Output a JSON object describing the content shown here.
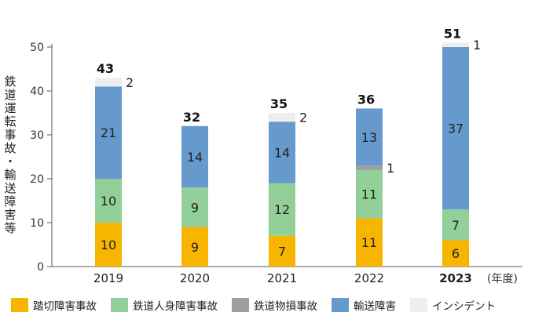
{
  "chart_data": {
    "type": "bar",
    "stacked": true,
    "ylabel": "鉄道運転事故・輸送障害等",
    "xunit": "(年度)",
    "ylim": [
      0,
      50
    ],
    "yticks": [
      0,
      10,
      20,
      30,
      40,
      50
    ],
    "categories": [
      "2019",
      "2020",
      "2021",
      "2022",
      "2023"
    ],
    "highlight_category": "2023",
    "series": [
      {
        "name": "踏切障害事故",
        "color": "#f7b500",
        "values": [
          10,
          9,
          7,
          11,
          6
        ]
      },
      {
        "name": "鉄道人身障害事故",
        "color": "#93cf98",
        "values": [
          10,
          9,
          12,
          11,
          7
        ]
      },
      {
        "name": "鉄道物損事故",
        "color": "#9e9e9e",
        "values": [
          0,
          0,
          0,
          1,
          0
        ]
      },
      {
        "name": "輸送障害",
        "color": "#6699cc",
        "values": [
          21,
          14,
          14,
          13,
          37
        ]
      },
      {
        "name": "インシデント",
        "color": "#eeeeee",
        "values": [
          2,
          0,
          2,
          0,
          1
        ]
      }
    ],
    "totals": [
      43,
      32,
      35,
      36,
      51
    ],
    "grid": false,
    "legend_position": "bottom"
  }
}
